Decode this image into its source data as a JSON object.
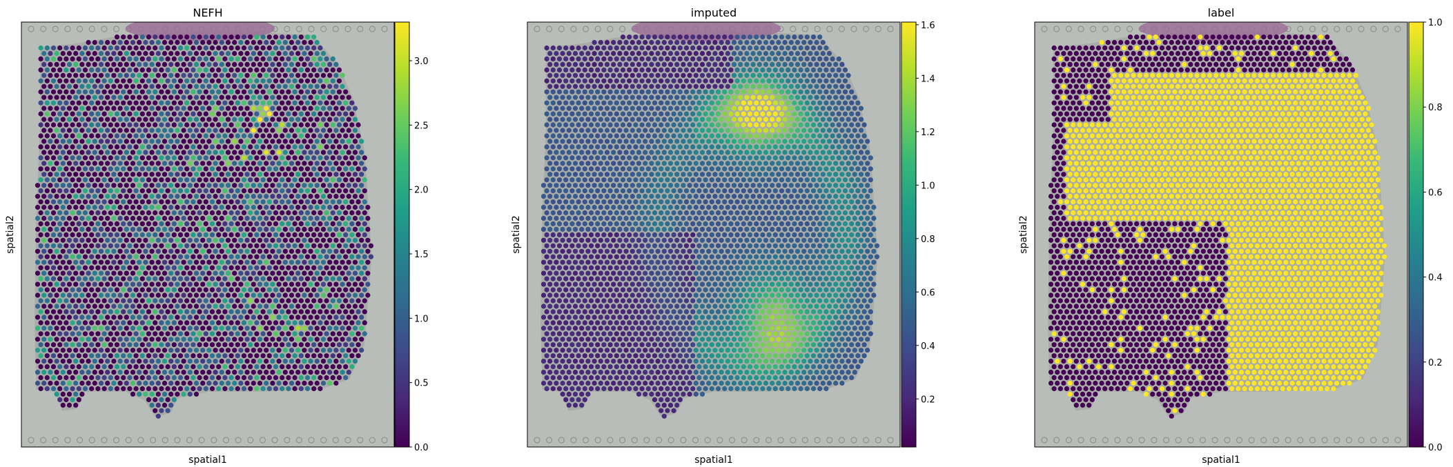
{
  "colormap": {
    "name": "viridis",
    "stops": [
      "#440154",
      "#482878",
      "#3e4989",
      "#31688e",
      "#26828e",
      "#1f9e89",
      "#35b779",
      "#6ece58",
      "#b5de2b",
      "#fde725"
    ]
  },
  "background": {
    "tissue_color": "#a9aca9",
    "fiducial_color": "#8f938f",
    "fold_color": "#9b6c96"
  },
  "chart_data": [
    {
      "type": "heatmap",
      "title": "NEFH",
      "xlabel": "spatial1",
      "ylabel": "spatial2",
      "colorbar": {
        "range": [
          0.0,
          3.3
        ],
        "ticks": [
          "0.0",
          "0.5",
          "1.0",
          "1.5",
          "2.0",
          "2.5",
          "3.0"
        ],
        "tick_values": [
          0,
          0.5,
          1.0,
          1.5,
          2.0,
          2.5,
          3.0
        ]
      },
      "pattern": "sparse-low-expression",
      "seed": 11
    },
    {
      "type": "heatmap",
      "title": "imputed",
      "xlabel": "spatial1",
      "ylabel": "spatial2",
      "colorbar": {
        "range": [
          0.02,
          1.61
        ],
        "ticks": [
          "0.2",
          "0.4",
          "0.6",
          "0.8",
          "1.0",
          "1.2",
          "1.4",
          "1.6"
        ],
        "tick_values": [
          0.2,
          0.4,
          0.6,
          0.8,
          1.0,
          1.2,
          1.4,
          1.6
        ]
      },
      "pattern": "smooth-band",
      "seed": 23
    },
    {
      "type": "heatmap",
      "title": "label",
      "xlabel": "spatial1",
      "ylabel": "spatial2",
      "colorbar": {
        "range": [
          0.0,
          1.0
        ],
        "ticks": [
          "0.0",
          "0.2",
          "0.4",
          "0.6",
          "0.8",
          "1.0"
        ],
        "tick_values": [
          0,
          0.2,
          0.4,
          0.6,
          0.8,
          1.0
        ]
      },
      "pattern": "binary-region",
      "seed": 37
    }
  ]
}
